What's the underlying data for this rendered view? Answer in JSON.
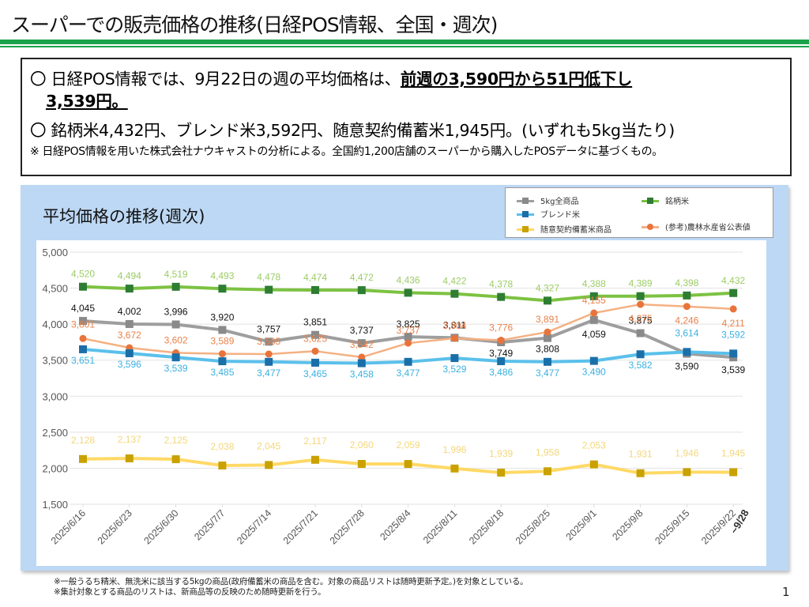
{
  "page": {
    "title": "スーパーでの販売価格の推移(日経POS情報、全国・週次)",
    "page_number": "1"
  },
  "summary": {
    "line1_prefix": "〇  日経POS情報では、9月22日の週の平均価格は、",
    "line1_emphasis": "前週の3,590円から51円低下し",
    "line2_emphasis": "3,539円。",
    "line3": "〇  銘柄米4,432円、ブレンド米3,592円、随意契約備蓄米1,945円。(いずれも5kg当たり)",
    "note": "※  日経POS情報を用いた株式会社ナウキャストの分析による。全国約1,200店舗のスーパーから購入したPOSデータに基づくもの。"
  },
  "footnotes": [
    "※一般うるち精米、無洗米に該当する5kgの商品(政府備蓄米の商品を含む。対象の商品リストは随時更新予定。)を対象としている。",
    "※集計対象とする商品のリストは、新商品等の反映のため随時更新を行う。"
  ],
  "chart_data": {
    "type": "line",
    "title": "平均価格の推移(週次)",
    "xlabel": "",
    "ylabel": "",
    "ylim": [
      1500,
      5000
    ],
    "yticks": [
      1500,
      2000,
      2500,
      3000,
      3500,
      4000,
      4500,
      5000
    ],
    "ytick_labels": [
      "1,500",
      "2,000",
      "2,500",
      "3,000",
      "3,500",
      "4,000",
      "4,500",
      "5,000"
    ],
    "grid": true,
    "legend_position": "top-right",
    "categories": [
      "2025/6/16",
      "2025/6/23",
      "2025/6/30",
      "2025/7/7",
      "2025/7/14",
      "2025/7/21",
      "2025/7/28",
      "2025/8/4",
      "2025/8/11",
      "2025/8/18",
      "2025/8/25",
      "2025/9/1",
      "2025/9/8",
      "2025/9/15",
      "2025/9/22"
    ],
    "last_category_suffix": "~9/28",
    "series": [
      {
        "key": "brand",
        "name": "銘柄米",
        "color": "#7cc242",
        "marker_color": "#2e7d32",
        "marker": "square",
        "label_color": "#9ccc65",
        "values": [
          4520,
          4494,
          4519,
          4493,
          4478,
          4474,
          4472,
          4436,
          4422,
          4378,
          4327,
          4388,
          4389,
          4398,
          4432
        ],
        "labels": [
          "4,520",
          "4,494",
          "4,519",
          "4,493",
          "4,478",
          "4,474",
          "4,472",
          "4,436",
          "4,422",
          "4,378",
          "4,327",
          "4,388",
          "4,389",
          "4,398",
          "4,432"
        ]
      },
      {
        "key": "all",
        "name": "5kg全商品",
        "color": "#9e9e9e",
        "marker_color": "#8a8a8a",
        "marker": "square",
        "label_color": "#111111",
        "values": [
          4045,
          4002,
          3996,
          3920,
          3757,
          3851,
          3737,
          3825,
          3811,
          3749,
          3808,
          4059,
          3875,
          3590,
          3539
        ],
        "labels": [
          "4,045",
          "4,002",
          "3,996",
          "3,920",
          "3,757",
          "3,851",
          "3,737",
          "3,825",
          "3,811",
          "3,749",
          "3,808",
          "4,059",
          "3,875",
          "3,590",
          "3,539"
        ]
      },
      {
        "key": "maff",
        "name": "(参考)農林水産省公表値",
        "color": "#f4b183",
        "marker_color": "#e8743b",
        "marker": "circle",
        "label_color": "#e8824a",
        "values": [
          3801,
          3672,
          3602,
          3589,
          3585,
          3625,
          3542,
          3737,
          3804,
          3776,
          3891,
          4155,
          4275,
          4246,
          4211
        ],
        "labels": [
          "3,801",
          "3,672",
          "3,602",
          "3,589",
          "3,585",
          "3,625",
          "3,542",
          "3,737",
          "3,804",
          "3,776",
          "3,891",
          "4,155",
          "4,275",
          "4,246",
          "4,211"
        ]
      },
      {
        "key": "blend",
        "name": "ブレンド米",
        "color": "#5bc0eb",
        "marker_color": "#1b6fa8",
        "marker": "square",
        "label_color": "#3ab0e0",
        "values": [
          3651,
          3596,
          3539,
          3485,
          3477,
          3465,
          3458,
          3477,
          3529,
          3486,
          3477,
          3490,
          3582,
          3614,
          3592
        ],
        "labels": [
          "3,651",
          "3,596",
          "3,539",
          "3,485",
          "3,477",
          "3,465",
          "3,458",
          "3,477",
          "3,529",
          "3,486",
          "3,477",
          "3,490",
          "3,582",
          "3,614",
          "3,592"
        ]
      },
      {
        "key": "reserve",
        "name": "随意契約備蓄米商品",
        "color": "#ffd966",
        "marker_color": "#c9a100",
        "marker": "square",
        "label_color": "#f3d77a",
        "values": [
          2128,
          2137,
          2125,
          2038,
          2045,
          2117,
          2060,
          2059,
          1996,
          1939,
          1958,
          2053,
          1931,
          1946,
          1945
        ],
        "labels": [
          "2,128",
          "2,137",
          "2,125",
          "2,038",
          "2,045",
          "2,117",
          "2,060",
          "2,059",
          "1,996",
          "1,939",
          "1,958",
          "2,053",
          "1,931",
          "1,946",
          "1,945"
        ]
      }
    ],
    "legend": [
      {
        "key": "all",
        "label": "5kg全商品"
      },
      {
        "key": "brand",
        "label": "銘柄米"
      },
      {
        "key": "blend",
        "label": "ブレンド米"
      },
      {
        "key": "reserve",
        "label": "随意契約備蓄米商品"
      },
      {
        "key": "maff",
        "label": "(参考)農林水産省公表値"
      }
    ]
  }
}
